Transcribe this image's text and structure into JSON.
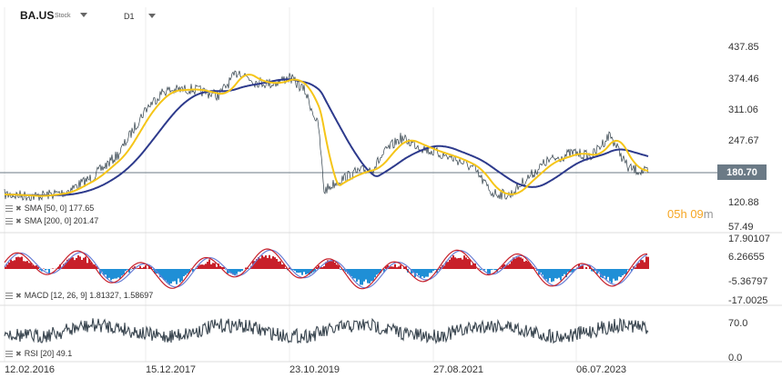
{
  "header": {
    "symbol": "BA.US",
    "symbol_type": "Stock",
    "timeframe": "D1"
  },
  "price_axis": [
    "437.85",
    "374.46",
    "311.06",
    "247.67",
    "120.88",
    "57.49"
  ],
  "last_price": "180.70",
  "countdown": {
    "hours": "05",
    "h_unit": "h",
    "minutes": "09",
    "m_unit": "m"
  },
  "macd_axis": [
    "17.90107",
    "6.26655",
    "-5.36797",
    "-17.0025"
  ],
  "rsi_axis": [
    "70.0",
    "0.0"
  ],
  "dates": [
    "12.02.2016",
    "15.12.2017",
    "23.10.2019",
    "27.08.2021",
    "06.07.2023"
  ],
  "legends": {
    "sma50": "SMA [50, 0] 177.65",
    "sma200": "SMA [200, 0] 201.47",
    "macd": "MACD [12, 26, 9] 1.81327, 1.58697",
    "rsi": "RSI [20] 49.1"
  },
  "colors": {
    "price": "#2f3e48",
    "sma50": "#f5c518",
    "sma200": "#2d3a8c",
    "macd_pos": "#c8202a",
    "macd_neg": "#1f8fd6",
    "macd_line": "#c8202a",
    "signal_line": "#6a7fd6",
    "rsi": "#3a4650",
    "last_price_bg": "#6b7a86",
    "countdown": "#f6a623"
  },
  "icons": [
    "chevron-down-icon",
    "indicator-settings-icon",
    "remove-indicator-icon"
  ]
}
